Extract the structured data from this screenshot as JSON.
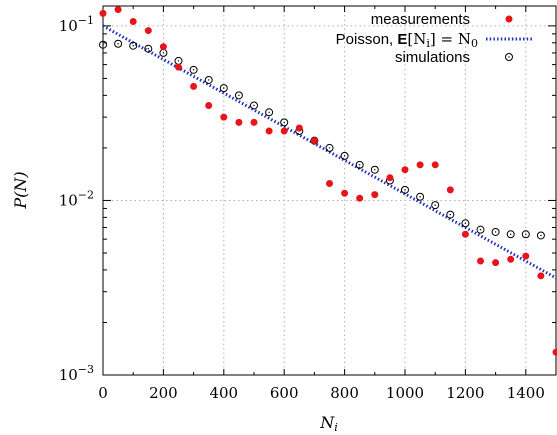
{
  "chart_data": {
    "type": "scatter",
    "title": "",
    "xlabel": "N_i",
    "ylabel": "P(N)",
    "xlim": [
      0,
      1500
    ],
    "ylim": [
      0.001,
      0.13
    ],
    "yscale": "log",
    "grid": true,
    "legend_position": "top-right",
    "x_ticks": [
      0,
      200,
      400,
      600,
      800,
      1000,
      1200,
      1400
    ],
    "y_ticks": [
      {
        "value": 0.1,
        "mantissa": "10",
        "exp": "−1"
      },
      {
        "value": 0.01,
        "mantissa": "10",
        "exp": "−2"
      },
      {
        "value": 0.001,
        "mantissa": "10",
        "exp": "−3"
      }
    ],
    "series": [
      {
        "name": "measurements",
        "marker": "filled-circle",
        "color": "#e8141b",
        "x": [
          0,
          50,
          100,
          150,
          200,
          250,
          300,
          350,
          400,
          450,
          500,
          550,
          600,
          650,
          700,
          750,
          800,
          850,
          900,
          950,
          1000,
          1050,
          1100,
          1150,
          1200,
          1250,
          1300,
          1350,
          1400,
          1450,
          1500
        ],
        "y": [
          0.118,
          0.124,
          0.106,
          0.094,
          0.076,
          0.058,
          0.045,
          0.035,
          0.03,
          0.028,
          0.028,
          0.025,
          0.025,
          0.026,
          0.022,
          0.0125,
          0.011,
          0.0103,
          0.0108,
          0.0135,
          0.015,
          0.016,
          0.016,
          0.0115,
          0.0064,
          0.0045,
          0.0044,
          0.0046,
          0.0048,
          0.0037,
          0.00135
        ]
      },
      {
        "name": "Poisson, E[N_i] = N_0",
        "marker": "dotted-line",
        "color": "#1f2fb8",
        "x": [
          0,
          1500
        ],
        "y": [
          0.1,
          0.0036
        ]
      },
      {
        "name": "simulations",
        "marker": "open-circle",
        "color": "#000000",
        "x": [
          0,
          50,
          100,
          150,
          200,
          250,
          300,
          350,
          400,
          450,
          500,
          550,
          600,
          650,
          700,
          750,
          800,
          850,
          900,
          950,
          1000,
          1050,
          1100,
          1150,
          1200,
          1250,
          1300,
          1350,
          1400,
          1450
        ],
        "y": [
          0.078,
          0.079,
          0.077,
          0.074,
          0.07,
          0.063,
          0.056,
          0.049,
          0.044,
          0.04,
          0.035,
          0.032,
          0.028,
          0.025,
          0.022,
          0.02,
          0.018,
          0.016,
          0.015,
          0.013,
          0.0115,
          0.0105,
          0.0094,
          0.0083,
          0.0074,
          0.0068,
          0.0066,
          0.0064,
          0.0064,
          0.0063
        ]
      }
    ],
    "legend": {
      "measurements": "measurements",
      "poisson_prefix": "Poisson, ",
      "poisson_E": "E",
      "poisson_arg": "[N",
      "poisson_sub": "i",
      "poisson_mid": "] = N",
      "poisson_sub0": "0",
      "simulations": "simulations"
    },
    "axis_text": {
      "x_base": "N",
      "x_sub": "i",
      "y": "P(N)"
    }
  }
}
